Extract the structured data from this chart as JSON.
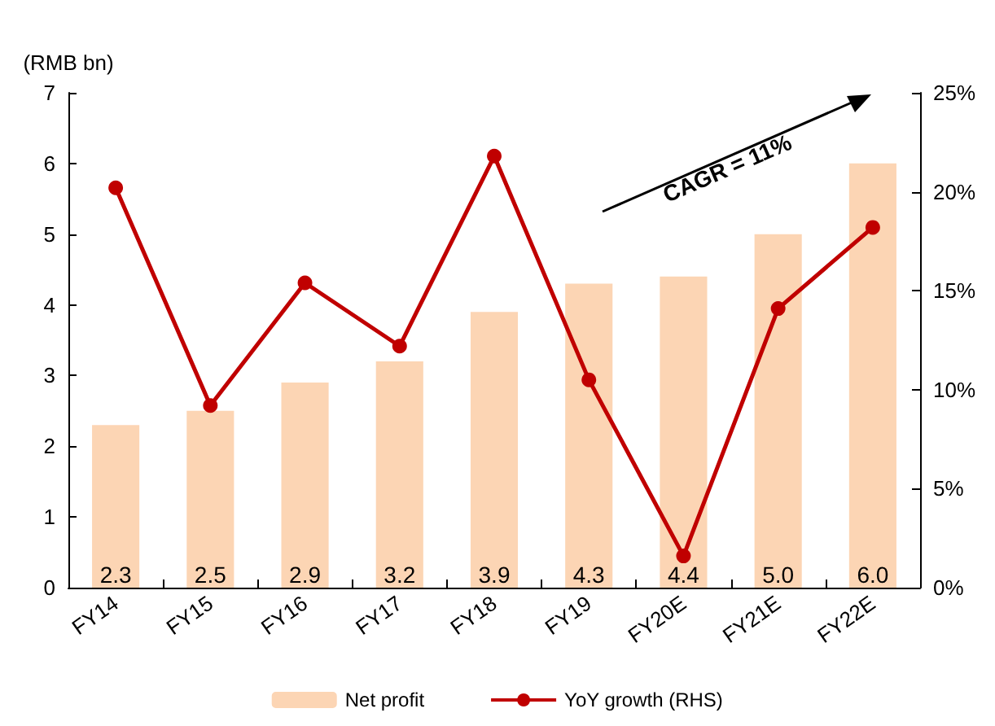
{
  "chart_data": {
    "type": "bar",
    "ylabel": "(RMB bn)",
    "categories": [
      "FY14",
      "FY15",
      "FY16",
      "FY17",
      "FY18",
      "FY19",
      "FY20E",
      "FY21E",
      "FY22E"
    ],
    "series": [
      {
        "name": "Net profit",
        "color": "#fcd5b4",
        "values": [
          2.3,
          2.5,
          2.9,
          3.2,
          3.9,
          4.3,
          4.4,
          5.0,
          6.0
        ],
        "value_labels": [
          "2.3",
          "2.5",
          "2.9",
          "3.2",
          "3.9",
          "4.3",
          "4.4",
          "5.0",
          "6.0"
        ]
      },
      {
        "name": "YoY growth (RHS)",
        "type": "line",
        "axis": "y2",
        "color": "#c00000",
        "values": [
          20.2,
          9.2,
          15.4,
          12.2,
          21.8,
          10.5,
          1.6,
          14.1,
          18.2
        ]
      }
    ],
    "ylim": [
      0,
      7
    ],
    "yticks": [
      0,
      1,
      2,
      3,
      4,
      5,
      6,
      7
    ],
    "y2lim": [
      0,
      25
    ],
    "y2ticks": [
      {
        "value": 0,
        "label": "0%"
      },
      {
        "value": 5,
        "label": "5%"
      },
      {
        "value": 10,
        "label": "10%"
      },
      {
        "value": 15,
        "label": "15%"
      },
      {
        "value": 20,
        "label": "20%"
      },
      {
        "value": 25,
        "label": "25%"
      }
    ],
    "annotations": [
      "CAGR = 11%"
    ],
    "grid": false,
    "legend": "bottom",
    "marker": "circle",
    "line_style": "solid"
  }
}
